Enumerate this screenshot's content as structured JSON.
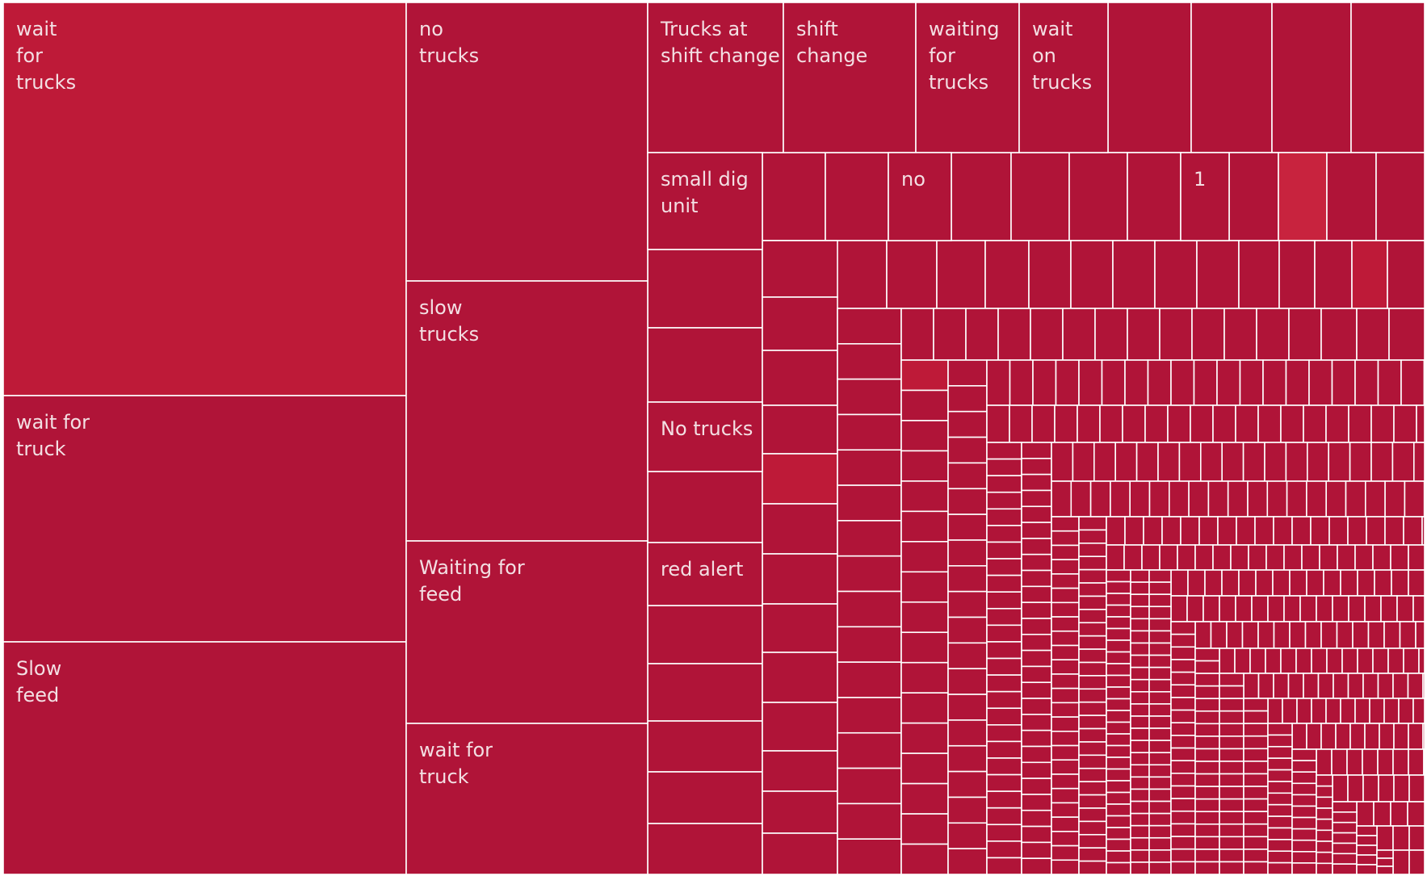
{
  "chart_data": {
    "type": "treemap",
    "title": "",
    "colors": {
      "base": "#b01438",
      "light": "#be1a38",
      "highlight": "#c8233e",
      "border": "#ffffff",
      "label": "#f3dfe3"
    },
    "labeled_cells": [
      {
        "label": "wait for trucks",
        "color": "light"
      },
      {
        "label": "wait for truck",
        "color": "base"
      },
      {
        "label": "Slow feed",
        "color": "base"
      },
      {
        "label": "no trucks",
        "color": "base"
      },
      {
        "label": "slow trucks",
        "color": "base"
      },
      {
        "label": "Waiting for feed",
        "color": "base"
      },
      {
        "label": "wait for truck",
        "color": "base"
      },
      {
        "label": "Trucks at shift change",
        "color": "base"
      },
      {
        "label": "shift change",
        "color": "base"
      },
      {
        "label": "waiting for trucks",
        "color": "base"
      },
      {
        "label": "wait on trucks",
        "color": "base"
      },
      {
        "label": "small dig unit",
        "color": "base"
      },
      {
        "label": "no",
        "color": "base"
      },
      {
        "label": "1",
        "color": "base"
      },
      {
        "label": "No trucks",
        "color": "base"
      },
      {
        "label": "red alert",
        "color": "base"
      }
    ],
    "unlabeled_cell_count": 1150
  }
}
